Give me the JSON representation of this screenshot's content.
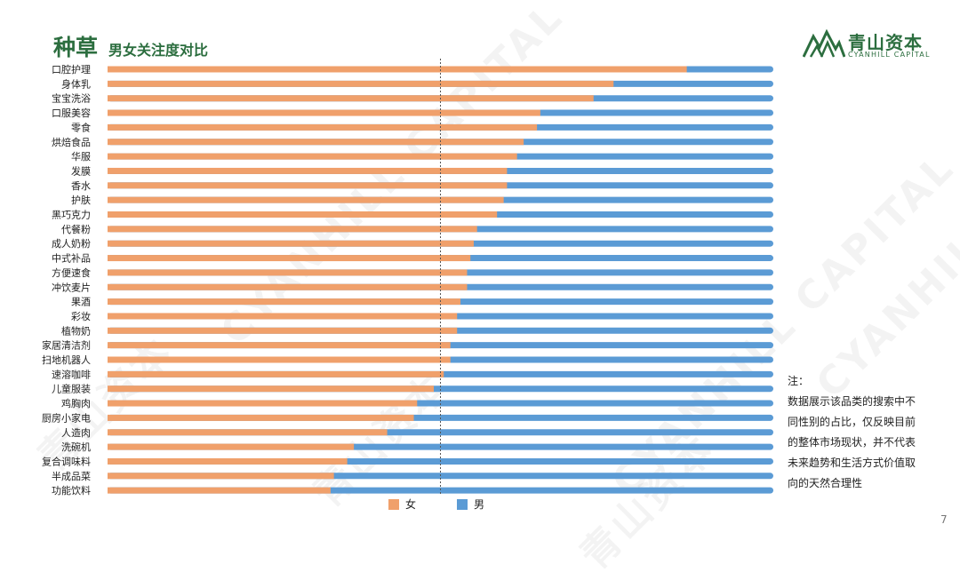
{
  "header": {
    "title": "种草",
    "subtitle": "男女关注度对比"
  },
  "logo": {
    "cn": "青山资本",
    "en": "CYANHILL CAPITAL",
    "icon": "mountain-logo-icon"
  },
  "watermark": {
    "cn": "青山资本",
    "en": "CYANHILL CAPITAL"
  },
  "note": {
    "head": "注：",
    "lines": [
      "数据展示该品类的搜索中不",
      "同性别的占比，仅反映目前",
      "的整体市场现状，并不代表",
      "未来趋势和生活方式价值取",
      "向的天然合理性"
    ]
  },
  "page_number": "7",
  "colors": {
    "female": "#f0a06b",
    "male": "#5b9bd5",
    "brand": "#2c6e3f"
  },
  "chart_data": {
    "type": "bar",
    "stacked": true,
    "orientation": "horizontal",
    "categories": [
      "口腔护理",
      "身体乳",
      "宝宝洗浴",
      "口服美容",
      "零食",
      "烘焙食品",
      "华服",
      "发膜",
      "香水",
      "护肤",
      "黑巧克力",
      "代餐粉",
      "成人奶粉",
      "中式补品",
      "方便速食",
      "冲饮麦片",
      "果酒",
      "彩妆",
      "植物奶",
      "家居清洁剂",
      "扫地机器人",
      "速溶咖啡",
      "儿童服装",
      "鸡胸肉",
      "厨房小家电",
      "人造肉",
      "洗碗机",
      "复合调味料",
      "半成品菜",
      "功能饮料"
    ],
    "series": [
      {
        "name": "女",
        "values": [
          87,
          76,
          73,
          65,
          64.5,
          62.5,
          61.5,
          60,
          60,
          59.5,
          58.5,
          55.5,
          55,
          54.5,
          54,
          54,
          53,
          52.5,
          52.5,
          51.5,
          51.5,
          50.5,
          49,
          46.5,
          46,
          42,
          37,
          36,
          34,
          33.5
        ]
      },
      {
        "name": "男",
        "values": [
          13,
          24,
          27,
          35,
          35.5,
          37.5,
          38.5,
          40,
          40,
          40.5,
          41.5,
          44.5,
          45,
          45.5,
          46,
          46,
          47,
          47.5,
          47.5,
          48.5,
          48.5,
          49.5,
          51,
          53.5,
          54,
          58,
          63,
          64,
          66,
          66.5
        ]
      }
    ],
    "xlim": [
      0,
      100
    ],
    "reference_line": 50,
    "legend": "bottom"
  }
}
